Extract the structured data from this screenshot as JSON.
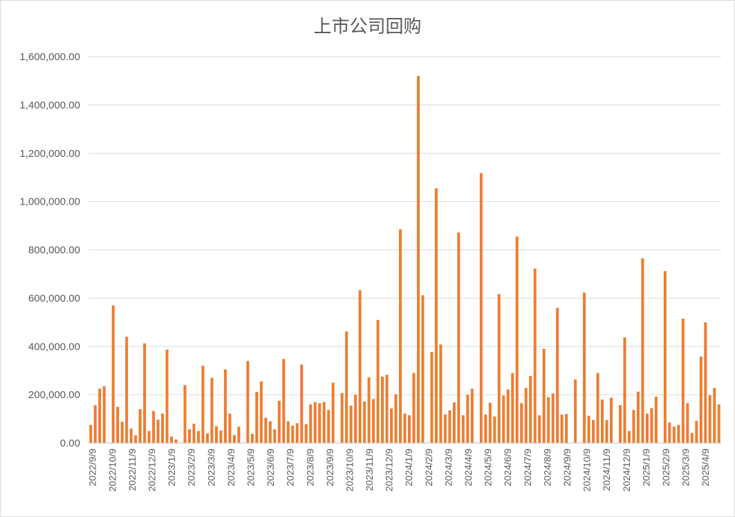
{
  "chart_data": {
    "type": "bar",
    "title": "上市公司回购",
    "xlabel": "",
    "ylabel": "",
    "ylim": [
      0,
      1600000
    ],
    "yticks": [
      "0.00",
      "200,000.00",
      "400,000.00",
      "600,000.00",
      "800,000.00",
      "1,000,000.00",
      "1,200,000.00",
      "1,400,000.00",
      "1,600,000.00"
    ],
    "xticks": [
      "2022/9/9",
      "2022/10/9",
      "2022/11/9",
      "2022/12/9",
      "2023/1/9",
      "2023/2/9",
      "2023/3/9",
      "2023/4/9",
      "2023/5/9",
      "2023/6/9",
      "2023/7/9",
      "2023/8/9",
      "2023/9/9",
      "2023/10/9",
      "2023/11/9",
      "2023/12/9",
      "2024/1/9",
      "2024/2/9",
      "2024/3/9",
      "2024/4/9",
      "2024/5/9",
      "2024/6/9",
      "2024/7/9",
      "2024/8/9",
      "2024/9/9",
      "2024/10/9",
      "2024/11/9",
      "2024/12/9",
      "2025/1/9",
      "2025/2/9",
      "2025/3/9",
      "2025/4/9"
    ],
    "grid": true,
    "legend": "none",
    "bar_color": "#ED7D31",
    "values": [
      75000,
      157000,
      225000,
      235000,
      0,
      570000,
      150000,
      88000,
      440000,
      60000,
      32000,
      140000,
      413000,
      50000,
      133000,
      97000,
      122000,
      387000,
      27000,
      15000,
      0,
      240000,
      57000,
      80000,
      50000,
      320000,
      40000,
      270000,
      70000,
      52000,
      305000,
      122000,
      33000,
      68000,
      0,
      340000,
      38000,
      212000,
      255000,
      105000,
      90000,
      57000,
      175000,
      348000,
      90000,
      72000,
      82000,
      325000,
      78000,
      160000,
      170000,
      165000,
      170000,
      137000,
      250000,
      0,
      207000,
      462000,
      155000,
      200000,
      633000,
      172000,
      272000,
      182000,
      510000,
      275000,
      283000,
      143000,
      202000,
      885000,
      122000,
      115000,
      290000,
      1520000,
      612000,
      0,
      377000,
      1055000,
      408000,
      118000,
      135000,
      168000,
      872000,
      115000,
      200000,
      225000,
      0,
      1118000,
      118000,
      167000,
      110000,
      617000,
      197000,
      222000,
      290000,
      855000,
      165000,
      228000,
      278000,
      722000,
      115000,
      390000,
      190000,
      205000,
      560000,
      118000,
      120000,
      0,
      263000,
      0,
      623000,
      113000,
      95000,
      290000,
      180000,
      95000,
      188000,
      0,
      157000,
      438000,
      50000,
      137000,
      213000,
      765000,
      122000,
      145000,
      192000,
      0,
      712000,
      85000,
      68000,
      75000,
      515000,
      165000,
      42000,
      92000,
      358000,
      500000,
      198000,
      228000,
      160000
    ]
  }
}
